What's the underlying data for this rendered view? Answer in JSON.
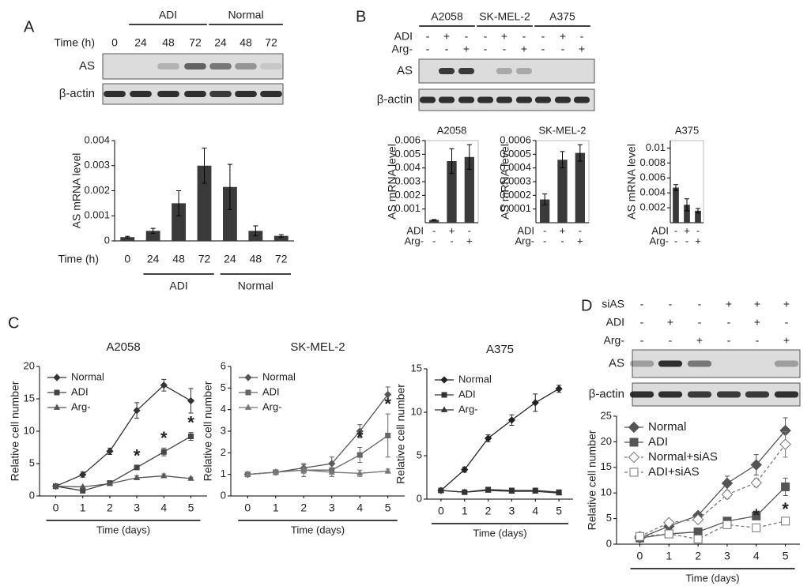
{
  "panel_labels": [
    "A",
    "B",
    "C",
    "D"
  ],
  "blots": [
    {
      "groups": [
        "ADI",
        "Normal"
      ],
      "lane_header": "Time (h)",
      "lanes": [
        "0",
        "24",
        "48",
        "72",
        "24",
        "48",
        "72"
      ],
      "rows": [
        "AS",
        "β-actin"
      ]
    },
    {
      "groups": [
        "A2058",
        "SK-MEL-2",
        "A375"
      ],
      "conditions": [
        {
          "name": "ADI",
          "signs": [
            "-",
            "+",
            "-",
            "-",
            "+",
            "-",
            "-",
            "+",
            "-"
          ]
        },
        {
          "name": "Arg-",
          "signs": [
            "-",
            "-",
            "+",
            "-",
            "-",
            "+",
            "-",
            "-",
            "+"
          ]
        }
      ],
      "rows": [
        "AS",
        "β-actin"
      ]
    },
    {
      "conditions": [
        {
          "name": "siAS",
          "signs": [
            "-",
            "-",
            "-",
            "+",
            "+",
            "+"
          ]
        },
        {
          "name": "ADI",
          "signs": [
            "-",
            "+",
            "-",
            "-",
            "+",
            "-"
          ]
        },
        {
          "name": "Arg-",
          "signs": [
            "-",
            "-",
            "+",
            "-",
            "-",
            "+"
          ]
        }
      ],
      "rows": [
        "AS",
        "β-actin"
      ]
    }
  ],
  "chart_data": [
    {
      "type": "bar",
      "ylabel": "AS mRNA level",
      "xlabel": "Time (h)",
      "categories": [
        "0",
        "24",
        "48",
        "72",
        "24",
        "48",
        "72"
      ],
      "groups": [
        "ADI",
        "Normal"
      ],
      "values": [
        0.00015,
        0.0004,
        0.0015,
        0.003,
        0.00215,
        0.0004,
        0.0002
      ],
      "errors": [
        3e-05,
        0.0001,
        0.0005,
        0.0007,
        0.0009,
        0.0002,
        5e-05
      ],
      "color": "#3a3a3a",
      "ylim": [
        0,
        0.004
      ],
      "yticks": [
        0,
        0.001,
        0.002,
        0.003,
        0.004
      ],
      "frame": false
    },
    {
      "type": "bar",
      "title": "A2058",
      "ylabel": "AS mRNA level",
      "conditions": [
        {
          "name": "ADI",
          "signs": [
            "-",
            "+",
            "-"
          ]
        },
        {
          "name": "Arg-",
          "signs": [
            "-",
            "-",
            "+"
          ]
        }
      ],
      "values": [
        0.0002,
        0.0045,
        0.0048
      ],
      "errors": [
        3e-05,
        0.0009,
        0.0009
      ],
      "color": "#3a3a3a",
      "ylim": [
        0,
        0.006
      ],
      "yticks": [
        0.001,
        0.002,
        0.003,
        0.004,
        0.005,
        0.006
      ],
      "frame": true
    },
    {
      "type": "bar",
      "title": "SK-MEL-2",
      "ylabel": "AS mRNA level",
      "conditions": [
        {
          "name": "ADI",
          "signs": [
            "-",
            "+",
            "-"
          ]
        },
        {
          "name": "Arg-",
          "signs": [
            "-",
            "-",
            "+"
          ]
        }
      ],
      "values": [
        0.00017,
        0.00046,
        0.00051
      ],
      "errors": [
        4e-05,
        6e-05,
        6e-05
      ],
      "color": "#3a3a3a",
      "ylim": [
        0,
        0.0006
      ],
      "yticks": [
        0.0001,
        0.0002,
        0.0003,
        0.0004,
        0.0005,
        0.0006
      ],
      "frame": true
    },
    {
      "type": "bar",
      "title": "A375",
      "ylabel": "AS mRNA level",
      "conditions": [
        {
          "name": "ADI",
          "signs": [
            "-",
            "+",
            "-"
          ]
        },
        {
          "name": "Arg-",
          "signs": [
            "-",
            "-",
            "+"
          ]
        }
      ],
      "values": [
        0.0047,
        0.0024,
        0.0016
      ],
      "errors": [
        0.0004,
        0.0008,
        0.0003
      ],
      "color": "#3a3a3a",
      "ylim": [
        0,
        0.011
      ],
      "yticks": [
        0.002,
        0.004,
        0.006,
        0.008,
        0.01
      ],
      "frame": true
    },
    {
      "type": "line",
      "title": "A2058",
      "xlabel": "Time (days)",
      "ylabel": "Relative cell number",
      "x": [
        0,
        1,
        2,
        3,
        4,
        5
      ],
      "xlim": [
        -0.6,
        5.6
      ],
      "xticks": [
        0,
        1,
        2,
        3,
        4,
        5
      ],
      "ylim": [
        0,
        20
      ],
      "yticks": [
        0,
        5,
        10,
        15,
        20
      ],
      "series": [
        {
          "name": "Normal",
          "color": "#333333",
          "marker": "diamond",
          "dash": false,
          "values": [
            1.5,
            3.3,
            6.9,
            13.2,
            17.1,
            14.7
          ],
          "errors": [
            0.2,
            0.4,
            0.5,
            1.2,
            0.9,
            1.9
          ]
        },
        {
          "name": "ADI",
          "color": "#444444",
          "marker": "square",
          "dash": false,
          "values": [
            1.5,
            0.8,
            2.0,
            4.4,
            6.8,
            9.2
          ],
          "errors": [
            0.1,
            0.1,
            0.2,
            0.3,
            0.6,
            0.6
          ],
          "annotations": [
            {
              "text": "*",
              "x": 3
            },
            {
              "text": "*",
              "x": 4
            },
            {
              "text": "*",
              "x": 5
            }
          ]
        },
        {
          "name": "Arg-",
          "color": "#555555",
          "marker": "triangle",
          "dash": false,
          "values": [
            1.5,
            1.4,
            1.9,
            2.8,
            3.1,
            2.7
          ],
          "errors": [
            0.1,
            0.1,
            0.1,
            0.3,
            0.3,
            0.2
          ]
        }
      ]
    },
    {
      "type": "line",
      "title": "SK-MEL-2",
      "xlabel": "Time (days)",
      "ylabel": "Relative cell number",
      "x": [
        0,
        1,
        2,
        3,
        4,
        5
      ],
      "xlim": [
        -0.6,
        5.6
      ],
      "xticks": [
        0,
        1,
        2,
        3,
        4,
        5
      ],
      "ylim": [
        0,
        6
      ],
      "yticks": [
        0,
        1,
        2,
        3,
        4,
        5,
        6
      ],
      "series": [
        {
          "name": "Normal",
          "color": "#555555",
          "marker": "diamond",
          "dash": false,
          "values": [
            1.0,
            1.1,
            1.3,
            1.5,
            3.0,
            4.7
          ],
          "errors": [
            0.1,
            0.1,
            0.15,
            0.3,
            0.3,
            0.35
          ]
        },
        {
          "name": "ADI",
          "color": "#666666",
          "marker": "square",
          "dash": false,
          "values": [
            1.0,
            1.1,
            1.2,
            1.2,
            1.9,
            2.8
          ],
          "errors": [
            0.1,
            0.1,
            0.3,
            0.3,
            0.35,
            1.0
          ],
          "annotations": [
            {
              "text": "*",
              "x": 4
            },
            {
              "text": "*",
              "x": 5
            }
          ]
        },
        {
          "name": "Arg-",
          "color": "#777777",
          "marker": "triangle",
          "dash": false,
          "values": [
            1.0,
            1.1,
            1.2,
            1.1,
            1.05,
            1.15
          ],
          "errors": [
            0.1,
            0.1,
            0.15,
            0.2,
            0.15,
            0.1
          ]
        }
      ]
    },
    {
      "type": "line",
      "title": "A375",
      "xlabel": "Time (days)",
      "ylabel": "Relative cell number",
      "x": [
        0,
        1,
        2,
        3,
        4,
        5
      ],
      "xlim": [
        -0.6,
        5.6
      ],
      "xticks": [
        0,
        1,
        2,
        3,
        4,
        5
      ],
      "ylim": [
        0,
        15
      ],
      "yticks": [
        0,
        5,
        10,
        15
      ],
      "series": [
        {
          "name": "Normal",
          "color": "#222222",
          "marker": "diamond",
          "dash": false,
          "values": [
            1.0,
            3.4,
            7.0,
            9.1,
            11.1,
            12.7
          ],
          "errors": [
            0.1,
            0.3,
            0.4,
            0.6,
            1.0,
            0.4
          ]
        },
        {
          "name": "ADI",
          "color": "#333333",
          "marker": "square",
          "dash": false,
          "values": [
            1.0,
            0.8,
            1.1,
            1.0,
            1.0,
            0.8
          ],
          "errors": [
            0.05,
            0.05,
            0.1,
            0.1,
            0.1,
            0.05
          ]
        },
        {
          "name": "Arg-",
          "color": "#333333",
          "marker": "triangle",
          "dash": false,
          "values": [
            1.0,
            0.8,
            1.0,
            0.9,
            0.9,
            0.7
          ],
          "errors": [
            0.05,
            0.05,
            0.1,
            0.1,
            0.1,
            0.05
          ]
        }
      ]
    },
    {
      "type": "line",
      "xlabel": "Time (days)",
      "ylabel": "Relative cell number",
      "x": [
        0,
        1,
        2,
        3,
        4,
        5
      ],
      "xlim": [
        -0.8,
        5.5
      ],
      "xticks": [
        0,
        1,
        2,
        3,
        4,
        5
      ],
      "ylim": [
        0,
        25
      ],
      "yticks": [
        0,
        5,
        10,
        15,
        20,
        25
      ],
      "series": [
        {
          "name": "Normal",
          "color": "#555555",
          "marker": "diamond",
          "dash": false,
          "values": [
            1.2,
            3.5,
            5.6,
            11.9,
            15.5,
            22.2
          ],
          "errors": [
            0.3,
            0.4,
            0.5,
            1.4,
            2.0,
            2.5
          ]
        },
        {
          "name": "ADI",
          "color": "#555555",
          "marker": "square",
          "dash": false,
          "values": [
            1.2,
            2.0,
            2.4,
            4.5,
            5.5,
            11.2
          ],
          "errors": [
            0.2,
            0.3,
            0.3,
            0.5,
            0.5,
            1.7
          ]
        },
        {
          "name": "Normal+siAS",
          "color": "#777777",
          "marker": "diamond-open",
          "dash": true,
          "values": [
            1.5,
            4.2,
            4.8,
            9.7,
            12.0,
            19.5
          ],
          "errors": [
            0.3,
            0.3,
            0.4,
            0.8,
            0.8,
            2.5
          ]
        },
        {
          "name": "ADI+siAS",
          "color": "#777777",
          "marker": "square-open",
          "dash": true,
          "values": [
            1.5,
            2.0,
            1.0,
            3.8,
            3.2,
            4.5
          ],
          "errors": [
            0.2,
            0.3,
            0.3,
            0.5,
            0.5,
            0.4
          ],
          "annotations": [
            {
              "text": "*",
              "x": 4
            },
            {
              "text": "*",
              "x": 5
            }
          ]
        }
      ]
    }
  ]
}
